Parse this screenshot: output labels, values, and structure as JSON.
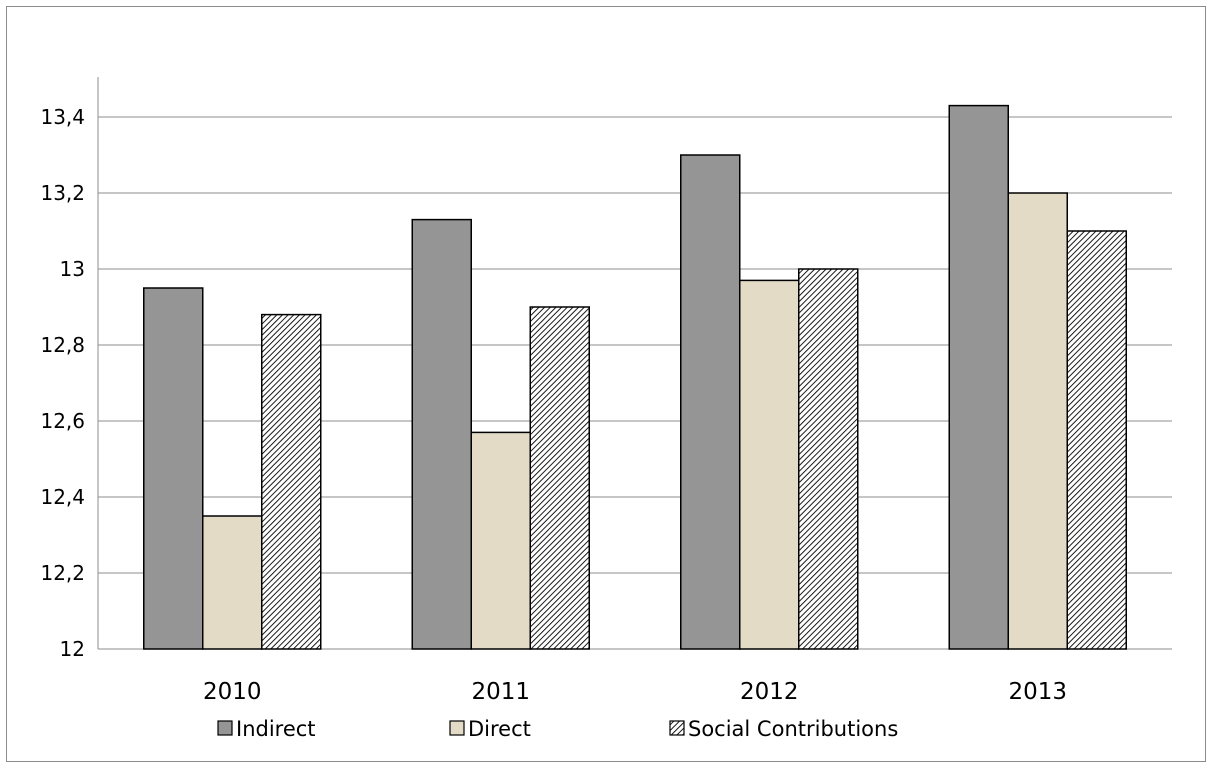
{
  "chart_data": {
    "type": "bar",
    "title": "",
    "xlabel": "",
    "ylabel": "",
    "categories": [
      "2010",
      "2011",
      "2012",
      "2013"
    ],
    "series": [
      {
        "name": "Indirect",
        "values": [
          12.95,
          13.13,
          13.3,
          13.43
        ],
        "color": "#959595",
        "pattern": "solid"
      },
      {
        "name": "Direct",
        "values": [
          12.35,
          12.57,
          12.97,
          13.2
        ],
        "color": "#e3dbc6",
        "pattern": "solid"
      },
      {
        "name": "Social Contributions",
        "values": [
          12.88,
          12.9,
          13.0,
          13.1
        ],
        "color": "#ffffff",
        "pattern": "diagonal-hatch"
      }
    ],
    "ylim": [
      12,
      13.4
    ],
    "yticks": [
      "12",
      "12,2",
      "12,4",
      "12,6",
      "12,8",
      "13",
      "13,2",
      "13,4"
    ],
    "grid": true,
    "legend_position": "bottom"
  }
}
